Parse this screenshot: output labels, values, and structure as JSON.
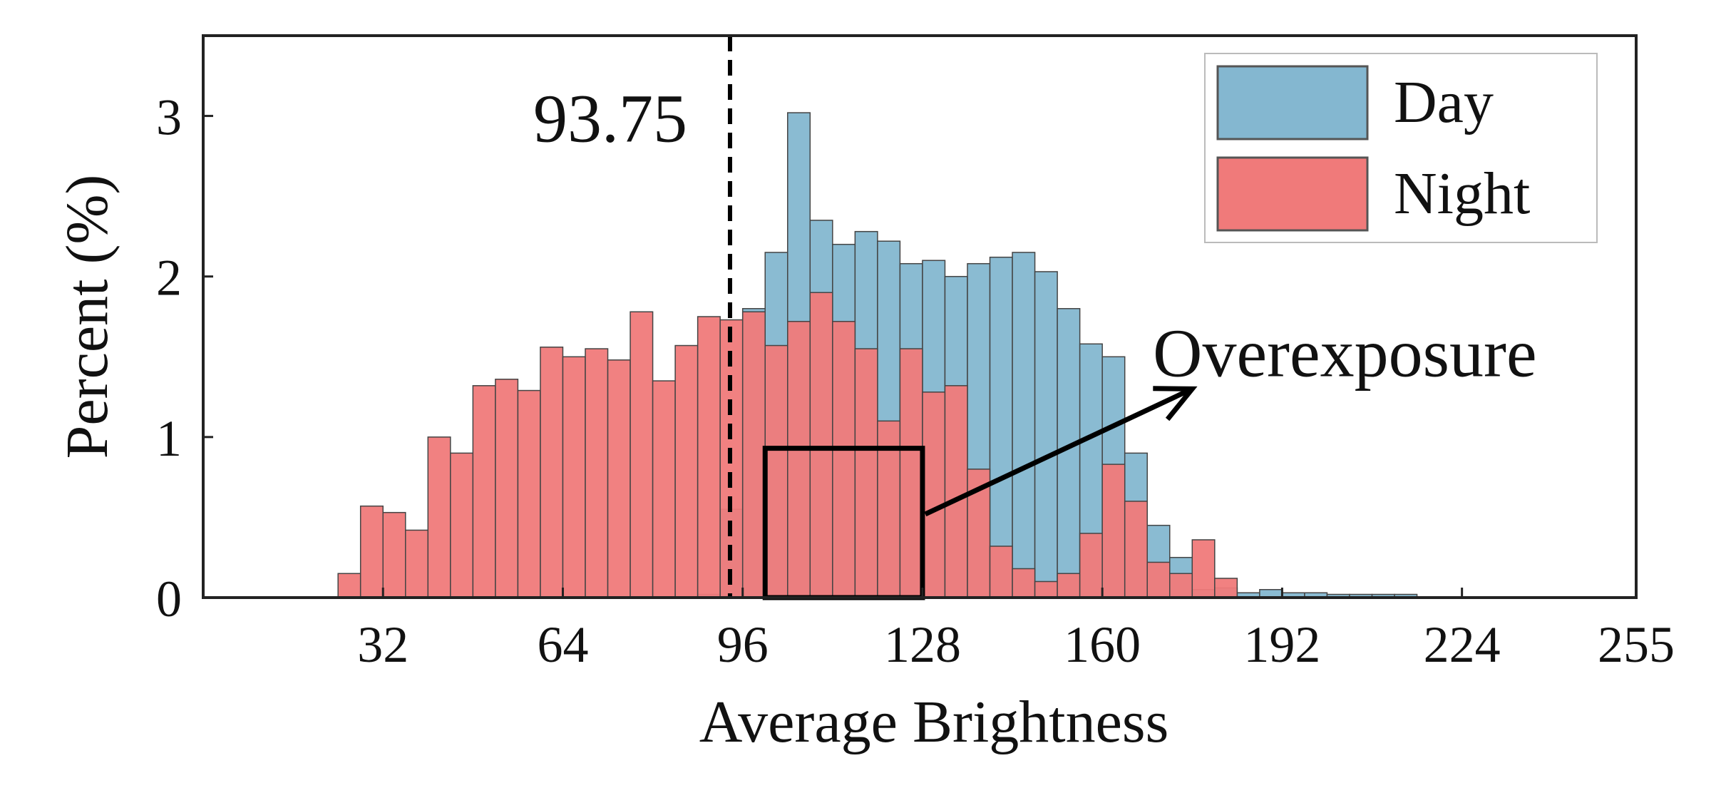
{
  "chart_data": {
    "type": "bar",
    "subtype": "histogram",
    "xlabel": "Average Brightness",
    "ylabel": "Percent (%)",
    "xlim": [
      0,
      255
    ],
    "ylim": [
      0,
      3.5
    ],
    "x_ticks": [
      32,
      64,
      96,
      128,
      160,
      192,
      224,
      255
    ],
    "y_ticks": [
      0,
      1,
      2,
      3
    ],
    "bin_width": 4,
    "grid": false,
    "legend_position": "top-right",
    "colors": {
      "day": "#84b7d0",
      "night": "#f07a7a",
      "edge": "#444444",
      "threshold": "#000000",
      "box": "#000000"
    },
    "threshold": {
      "x": 93.75,
      "label": "93.75"
    },
    "annotation": {
      "label": "Overexposure",
      "box_x": [
        100,
        128
      ],
      "box_y": [
        0,
        0.93
      ]
    },
    "series": [
      {
        "name": "Day",
        "bins": [
          {
            "x": 88,
            "y": 0.02
          },
          {
            "x": 92,
            "y": 0.55
          },
          {
            "x": 96,
            "y": 1.8
          },
          {
            "x": 100,
            "y": 2.15
          },
          {
            "x": 104,
            "y": 3.02
          },
          {
            "x": 108,
            "y": 2.35
          },
          {
            "x": 112,
            "y": 2.2
          },
          {
            "x": 116,
            "y": 2.28
          },
          {
            "x": 120,
            "y": 2.22
          },
          {
            "x": 124,
            "y": 2.08
          },
          {
            "x": 128,
            "y": 2.1
          },
          {
            "x": 132,
            "y": 2.0
          },
          {
            "x": 136,
            "y": 2.08
          },
          {
            "x": 140,
            "y": 2.12
          },
          {
            "x": 144,
            "y": 2.15
          },
          {
            "x": 148,
            "y": 2.03
          },
          {
            "x": 152,
            "y": 1.8
          },
          {
            "x": 156,
            "y": 1.58
          },
          {
            "x": 160,
            "y": 1.5
          },
          {
            "x": 164,
            "y": 0.9
          },
          {
            "x": 168,
            "y": 0.45
          },
          {
            "x": 172,
            "y": 0.25
          },
          {
            "x": 176,
            "y": 0.05
          },
          {
            "x": 180,
            "y": 0.06
          },
          {
            "x": 184,
            "y": 0.03
          },
          {
            "x": 188,
            "y": 0.05
          },
          {
            "x": 192,
            "y": 0.03
          },
          {
            "x": 196,
            "y": 0.03
          },
          {
            "x": 200,
            "y": 0.02
          },
          {
            "x": 204,
            "y": 0.02
          },
          {
            "x": 208,
            "y": 0.02
          },
          {
            "x": 212,
            "y": 0.02
          }
        ]
      },
      {
        "name": "Night",
        "bins": [
          {
            "x": 24,
            "y": 0.15
          },
          {
            "x": 28,
            "y": 0.57
          },
          {
            "x": 32,
            "y": 0.53
          },
          {
            "x": 36,
            "y": 0.42
          },
          {
            "x": 40,
            "y": 1.0
          },
          {
            "x": 44,
            "y": 0.9
          },
          {
            "x": 48,
            "y": 1.32
          },
          {
            "x": 52,
            "y": 1.36
          },
          {
            "x": 56,
            "y": 1.29
          },
          {
            "x": 60,
            "y": 1.56
          },
          {
            "x": 64,
            "y": 1.5
          },
          {
            "x": 68,
            "y": 1.55
          },
          {
            "x": 72,
            "y": 1.48
          },
          {
            "x": 76,
            "y": 1.78
          },
          {
            "x": 80,
            "y": 1.35
          },
          {
            "x": 84,
            "y": 1.57
          },
          {
            "x": 88,
            "y": 1.75
          },
          {
            "x": 92,
            "y": 1.73
          },
          {
            "x": 96,
            "y": 1.78
          },
          {
            "x": 100,
            "y": 1.57
          },
          {
            "x": 104,
            "y": 1.72
          },
          {
            "x": 108,
            "y": 1.9
          },
          {
            "x": 112,
            "y": 1.72
          },
          {
            "x": 116,
            "y": 1.55
          },
          {
            "x": 120,
            "y": 1.1
          },
          {
            "x": 124,
            "y": 1.55
          },
          {
            "x": 128,
            "y": 1.28
          },
          {
            "x": 132,
            "y": 1.32
          },
          {
            "x": 136,
            "y": 0.8
          },
          {
            "x": 140,
            "y": 0.32
          },
          {
            "x": 144,
            "y": 0.18
          },
          {
            "x": 148,
            "y": 0.1
          },
          {
            "x": 152,
            "y": 0.15
          },
          {
            "x": 156,
            "y": 0.4
          },
          {
            "x": 160,
            "y": 0.83
          },
          {
            "x": 164,
            "y": 0.6
          },
          {
            "x": 168,
            "y": 0.22
          },
          {
            "x": 172,
            "y": 0.15
          },
          {
            "x": 176,
            "y": 0.36
          },
          {
            "x": 180,
            "y": 0.12
          }
        ]
      }
    ]
  }
}
